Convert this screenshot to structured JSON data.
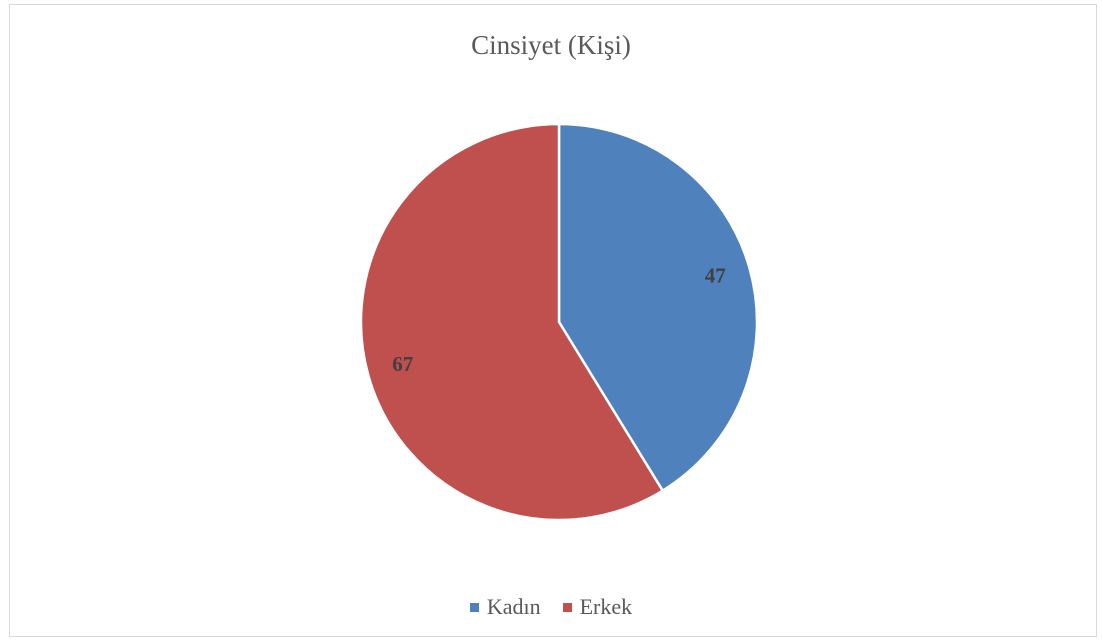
{
  "chart_data": {
    "type": "pie",
    "title": "Cinsiyet (Kişi)",
    "categories": [
      "Kadın",
      "Erkek"
    ],
    "values": [
      47,
      67
    ],
    "colors": [
      "#4f81bd",
      "#c0504d"
    ],
    "data_labels": [
      "47",
      "67"
    ],
    "legend_position": "bottom",
    "start_angle": "12 o'clock, clockwise"
  }
}
